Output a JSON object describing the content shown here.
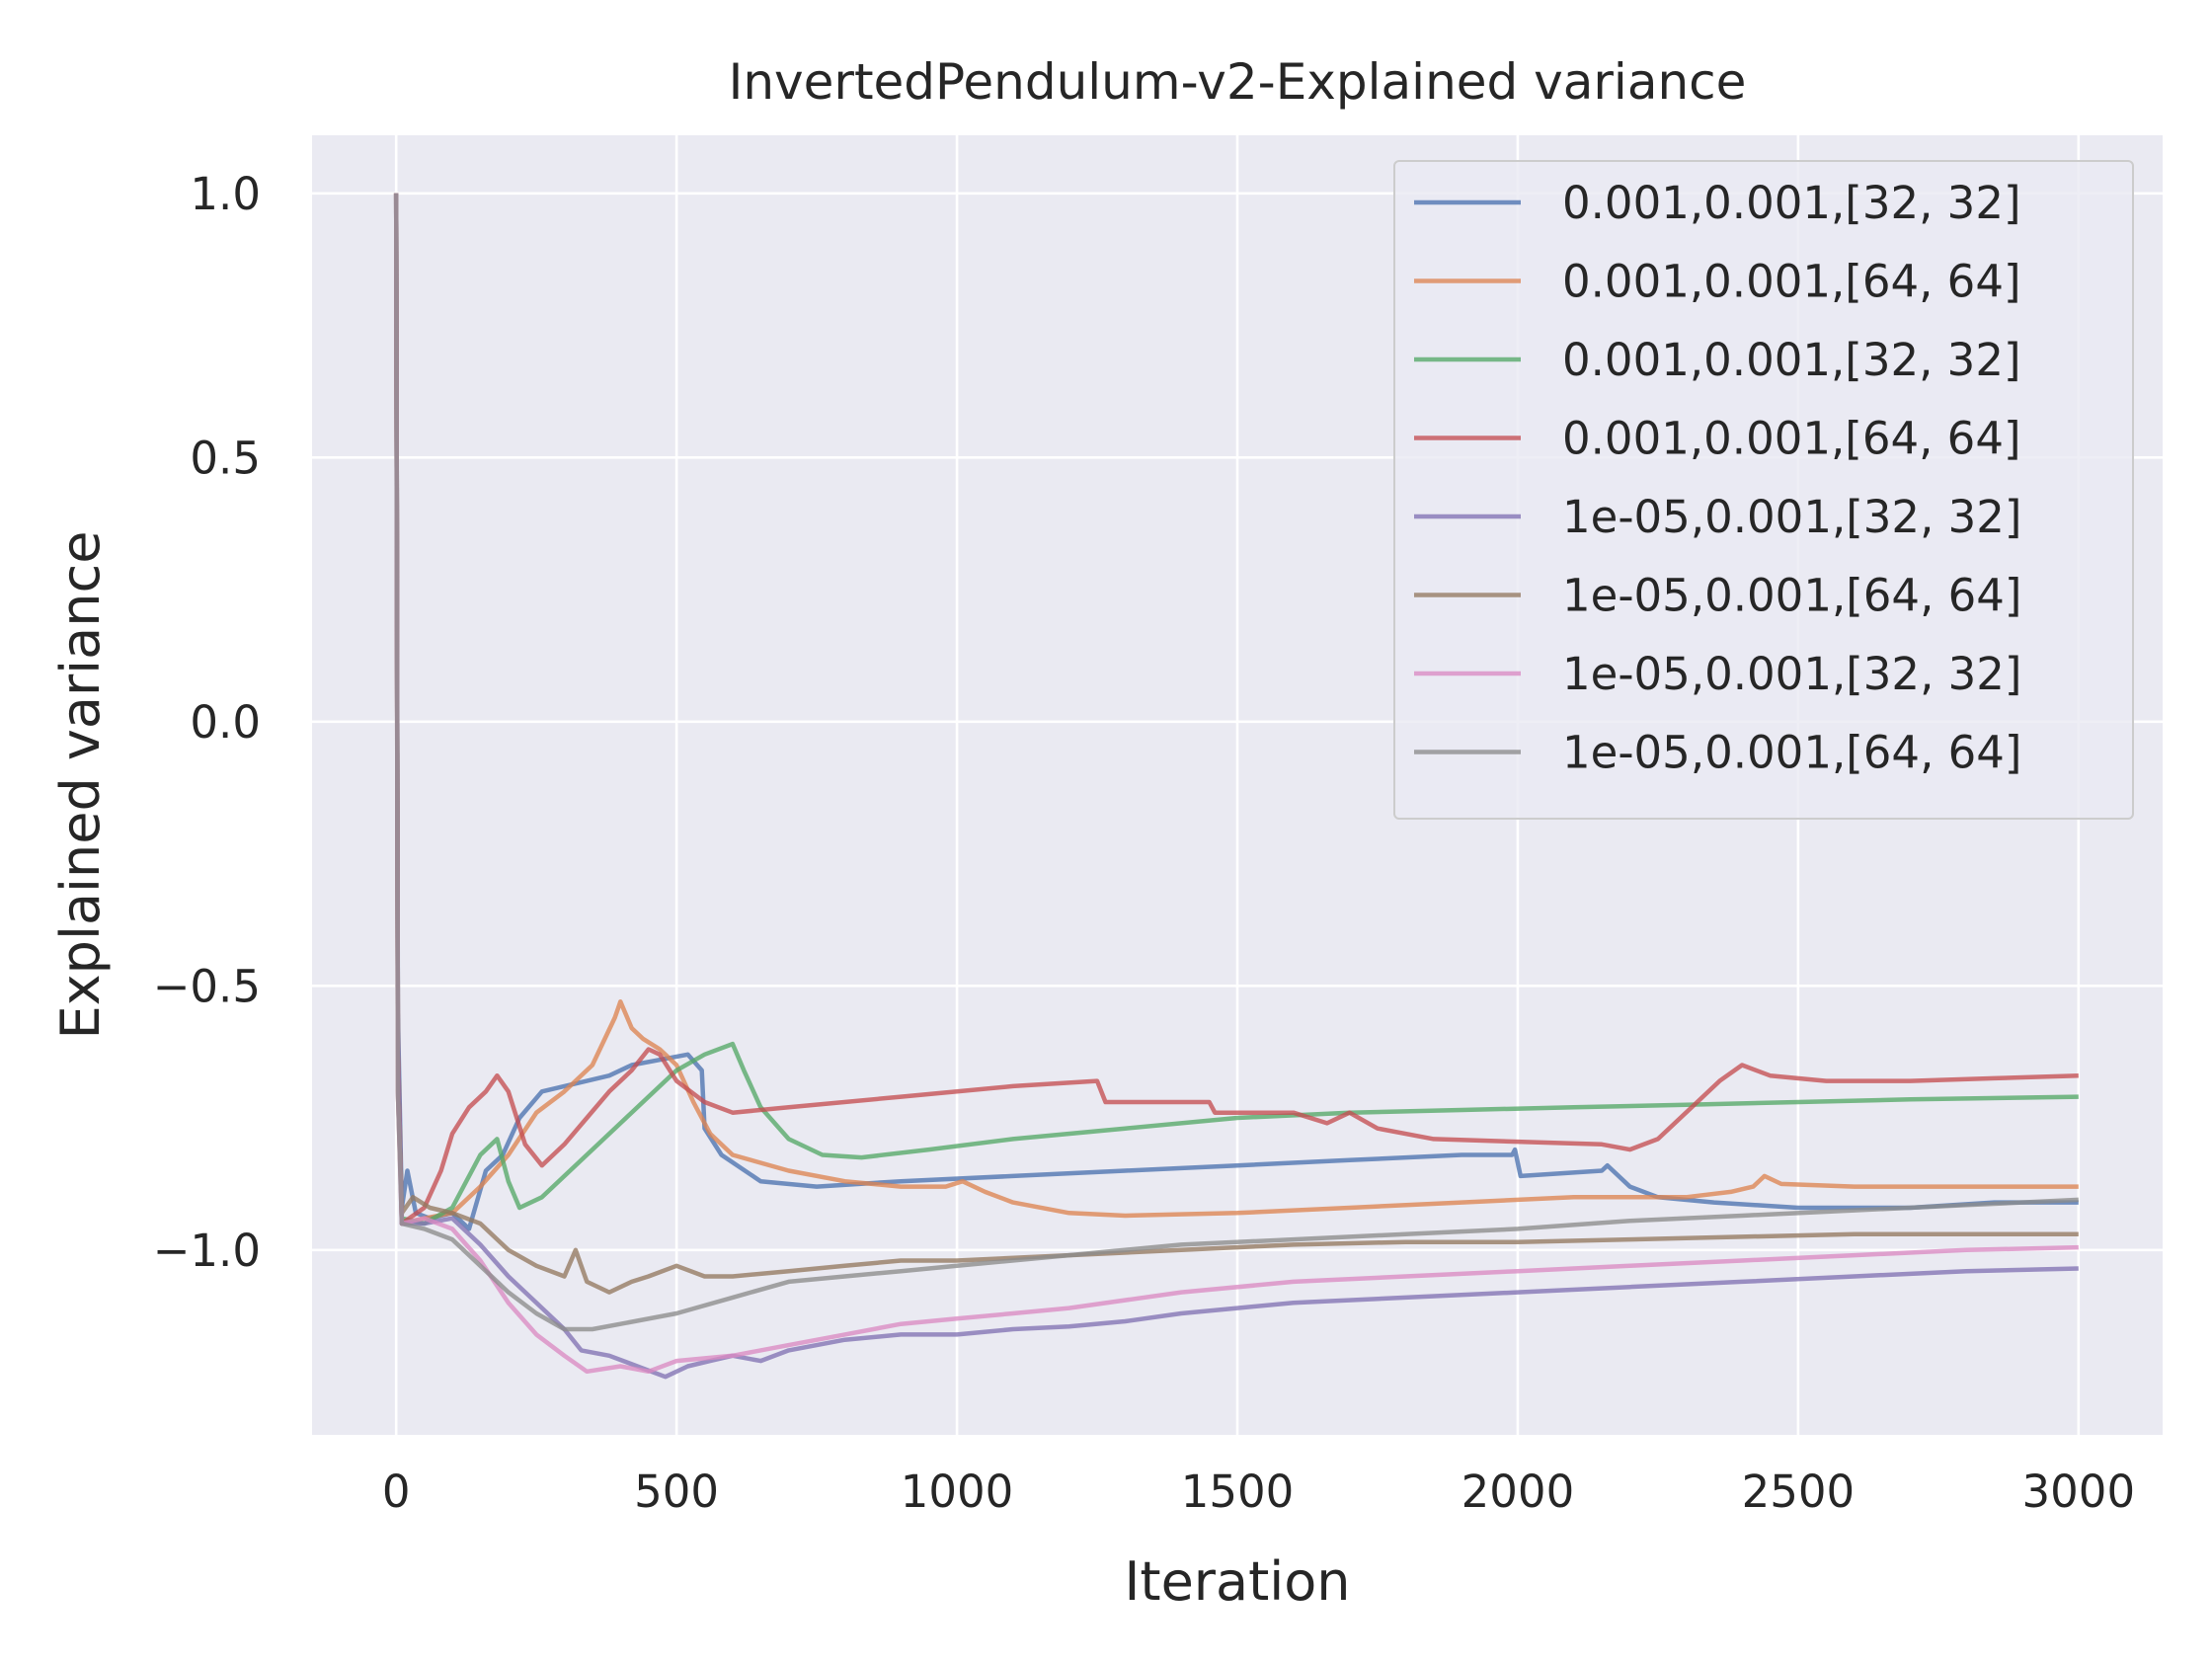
{
  "chart_data": {
    "type": "line",
    "title": "InvertedPendulum-v2-Explained variance",
    "xlabel": "Iteration",
    "ylabel": "Explained variance",
    "xlim": [
      -150,
      3150
    ],
    "ylim": [
      -1.35,
      1.11
    ],
    "x_ticks": [
      0,
      500,
      1000,
      1500,
      2000,
      2500,
      3000
    ],
    "x_tick_labels": [
      "0",
      "500",
      "1000",
      "1500",
      "2000",
      "2500",
      "3000"
    ],
    "y_ticks": [
      1.0,
      0.5,
      0.0,
      -0.5,
      -1.0
    ],
    "y_tick_labels": [
      "1.0",
      "0.5",
      "0.0",
      "−0.5",
      "−1.0"
    ],
    "grid": true,
    "legend_position": "top-right",
    "background": "#eaeaf2",
    "series": [
      {
        "name": "0.001,0.001,[32, 32]",
        "color": "#4c72b0",
        "points": [
          [
            0,
            1.0
          ],
          [
            3,
            -0.55
          ],
          [
            10,
            -0.92
          ],
          [
            20,
            -0.85
          ],
          [
            35,
            -0.93
          ],
          [
            60,
            -0.94
          ],
          [
            100,
            -0.93
          ],
          [
            130,
            -0.96
          ],
          [
            160,
            -0.85
          ],
          [
            190,
            -0.82
          ],
          [
            220,
            -0.75
          ],
          [
            260,
            -0.7
          ],
          [
            300,
            -0.69
          ],
          [
            340,
            -0.68
          ],
          [
            380,
            -0.67
          ],
          [
            420,
            -0.65
          ],
          [
            470,
            -0.64
          ],
          [
            520,
            -0.63
          ],
          [
            545,
            -0.66
          ],
          [
            550,
            -0.77
          ],
          [
            580,
            -0.82
          ],
          [
            650,
            -0.87
          ],
          [
            750,
            -0.88
          ],
          [
            900,
            -0.87
          ],
          [
            1100,
            -0.86
          ],
          [
            1300,
            -0.85
          ],
          [
            1500,
            -0.84
          ],
          [
            1700,
            -0.83
          ],
          [
            1900,
            -0.82
          ],
          [
            1990,
            -0.82
          ],
          [
            1995,
            -0.81
          ],
          [
            2005,
            -0.86
          ],
          [
            2150,
            -0.85
          ],
          [
            2160,
            -0.84
          ],
          [
            2200,
            -0.88
          ],
          [
            2250,
            -0.9
          ],
          [
            2350,
            -0.91
          ],
          [
            2500,
            -0.92
          ],
          [
            2700,
            -0.92
          ],
          [
            2850,
            -0.91
          ],
          [
            3000,
            -0.91
          ]
        ]
      },
      {
        "name": "0.001,0.001,[64, 64]",
        "color": "#dd8452",
        "points": [
          [
            0,
            1.0
          ],
          [
            3,
            -0.6
          ],
          [
            10,
            -0.95
          ],
          [
            50,
            -0.94
          ],
          [
            100,
            -0.93
          ],
          [
            150,
            -0.88
          ],
          [
            200,
            -0.82
          ],
          [
            250,
            -0.74
          ],
          [
            300,
            -0.7
          ],
          [
            350,
            -0.65
          ],
          [
            390,
            -0.56
          ],
          [
            400,
            -0.53
          ],
          [
            420,
            -0.58
          ],
          [
            440,
            -0.6
          ],
          [
            470,
            -0.62
          ],
          [
            500,
            -0.65
          ],
          [
            530,
            -0.72
          ],
          [
            560,
            -0.78
          ],
          [
            600,
            -0.82
          ],
          [
            700,
            -0.85
          ],
          [
            800,
            -0.87
          ],
          [
            900,
            -0.88
          ],
          [
            980,
            -0.88
          ],
          [
            1010,
            -0.87
          ],
          [
            1050,
            -0.89
          ],
          [
            1100,
            -0.91
          ],
          [
            1200,
            -0.93
          ],
          [
            1300,
            -0.935
          ],
          [
            1500,
            -0.93
          ],
          [
            1700,
            -0.92
          ],
          [
            1900,
            -0.91
          ],
          [
            2100,
            -0.9
          ],
          [
            2300,
            -0.9
          ],
          [
            2380,
            -0.89
          ],
          [
            2420,
            -0.88
          ],
          [
            2440,
            -0.86
          ],
          [
            2470,
            -0.875
          ],
          [
            2600,
            -0.88
          ],
          [
            2800,
            -0.88
          ],
          [
            3000,
            -0.88
          ]
        ]
      },
      {
        "name": "0.001,0.001,[32, 32]",
        "color": "#55a868",
        "points": [
          [
            0,
            1.0
          ],
          [
            3,
            -0.6
          ],
          [
            10,
            -0.94
          ],
          [
            50,
            -0.95
          ],
          [
            100,
            -0.92
          ],
          [
            150,
            -0.82
          ],
          [
            180,
            -0.79
          ],
          [
            200,
            -0.87
          ],
          [
            220,
            -0.92
          ],
          [
            260,
            -0.9
          ],
          [
            300,
            -0.86
          ],
          [
            350,
            -0.81
          ],
          [
            400,
            -0.76
          ],
          [
            450,
            -0.71
          ],
          [
            500,
            -0.66
          ],
          [
            550,
            -0.63
          ],
          [
            600,
            -0.61
          ],
          [
            620,
            -0.66
          ],
          [
            650,
            -0.73
          ],
          [
            700,
            -0.79
          ],
          [
            760,
            -0.82
          ],
          [
            830,
            -0.825
          ],
          [
            950,
            -0.81
          ],
          [
            1100,
            -0.79
          ],
          [
            1300,
            -0.77
          ],
          [
            1500,
            -0.75
          ],
          [
            1700,
            -0.74
          ],
          [
            1900,
            -0.735
          ],
          [
            2100,
            -0.73
          ],
          [
            2300,
            -0.725
          ],
          [
            2500,
            -0.72
          ],
          [
            2700,
            -0.715
          ],
          [
            3000,
            -0.71
          ]
        ]
      },
      {
        "name": "0.001,0.001,[64, 64]",
        "color": "#c44e52",
        "points": [
          [
            0,
            1.0
          ],
          [
            3,
            -0.6
          ],
          [
            10,
            -0.95
          ],
          [
            50,
            -0.92
          ],
          [
            80,
            -0.85
          ],
          [
            100,
            -0.78
          ],
          [
            130,
            -0.73
          ],
          [
            160,
            -0.7
          ],
          [
            180,
            -0.67
          ],
          [
            200,
            -0.7
          ],
          [
            230,
            -0.8
          ],
          [
            260,
            -0.84
          ],
          [
            300,
            -0.8
          ],
          [
            340,
            -0.75
          ],
          [
            380,
            -0.7
          ],
          [
            420,
            -0.66
          ],
          [
            450,
            -0.62
          ],
          [
            470,
            -0.63
          ],
          [
            500,
            -0.68
          ],
          [
            550,
            -0.72
          ],
          [
            600,
            -0.74
          ],
          [
            700,
            -0.73
          ],
          [
            900,
            -0.71
          ],
          [
            1100,
            -0.69
          ],
          [
            1250,
            -0.68
          ],
          [
            1265,
            -0.72
          ],
          [
            1450,
            -0.72
          ],
          [
            1460,
            -0.74
          ],
          [
            1600,
            -0.74
          ],
          [
            1660,
            -0.76
          ],
          [
            1700,
            -0.74
          ],
          [
            1750,
            -0.77
          ],
          [
            1850,
            -0.79
          ],
          [
            2000,
            -0.795
          ],
          [
            2150,
            -0.8
          ],
          [
            2200,
            -0.81
          ],
          [
            2250,
            -0.79
          ],
          [
            2320,
            -0.72
          ],
          [
            2360,
            -0.68
          ],
          [
            2400,
            -0.65
          ],
          [
            2450,
            -0.67
          ],
          [
            2550,
            -0.68
          ],
          [
            2700,
            -0.68
          ],
          [
            2850,
            -0.675
          ],
          [
            3000,
            -0.67
          ]
        ]
      },
      {
        "name": "1e-05,0.001,[32, 32]",
        "color": "#8172b3",
        "points": [
          [
            0,
            1.0
          ],
          [
            3,
            -0.6
          ],
          [
            10,
            -0.95
          ],
          [
            50,
            -0.95
          ],
          [
            100,
            -0.94
          ],
          [
            150,
            -0.99
          ],
          [
            200,
            -1.05
          ],
          [
            250,
            -1.1
          ],
          [
            300,
            -1.15
          ],
          [
            330,
            -1.19
          ],
          [
            380,
            -1.2
          ],
          [
            430,
            -1.22
          ],
          [
            480,
            -1.24
          ],
          [
            520,
            -1.22
          ],
          [
            560,
            -1.21
          ],
          [
            600,
            -1.2
          ],
          [
            650,
            -1.21
          ],
          [
            700,
            -1.19
          ],
          [
            800,
            -1.17
          ],
          [
            900,
            -1.16
          ],
          [
            1000,
            -1.16
          ],
          [
            1100,
            -1.15
          ],
          [
            1200,
            -1.145
          ],
          [
            1300,
            -1.135
          ],
          [
            1400,
            -1.12
          ],
          [
            1500,
            -1.11
          ],
          [
            1600,
            -1.1
          ],
          [
            1800,
            -1.09
          ],
          [
            2000,
            -1.08
          ],
          [
            2200,
            -1.07
          ],
          [
            2400,
            -1.06
          ],
          [
            2600,
            -1.05
          ],
          [
            2800,
            -1.04
          ],
          [
            3000,
            -1.035
          ]
        ]
      },
      {
        "name": "1e-05,0.001,[64, 64]",
        "color": "#937860",
        "points": [
          [
            0,
            1.0
          ],
          [
            3,
            -0.7
          ],
          [
            10,
            -0.93
          ],
          [
            30,
            -0.9
          ],
          [
            60,
            -0.92
          ],
          [
            100,
            -0.93
          ],
          [
            150,
            -0.95
          ],
          [
            200,
            -1.0
          ],
          [
            250,
            -1.03
          ],
          [
            300,
            -1.05
          ],
          [
            320,
            -1.0
          ],
          [
            340,
            -1.06
          ],
          [
            380,
            -1.08
          ],
          [
            420,
            -1.06
          ],
          [
            450,
            -1.05
          ],
          [
            500,
            -1.03
          ],
          [
            550,
            -1.05
          ],
          [
            600,
            -1.05
          ],
          [
            700,
            -1.04
          ],
          [
            800,
            -1.03
          ],
          [
            900,
            -1.02
          ],
          [
            1000,
            -1.02
          ],
          [
            1200,
            -1.01
          ],
          [
            1400,
            -1.0
          ],
          [
            1600,
            -0.99
          ],
          [
            1800,
            -0.985
          ],
          [
            2000,
            -0.985
          ],
          [
            2200,
            -0.98
          ],
          [
            2400,
            -0.975
          ],
          [
            2600,
            -0.97
          ],
          [
            2800,
            -0.97
          ],
          [
            3000,
            -0.97
          ]
        ]
      },
      {
        "name": "1e-05,0.001,[32, 32]",
        "color": "#da8bc3",
        "points": [
          [
            0,
            1.0
          ],
          [
            3,
            -0.7
          ],
          [
            10,
            -0.95
          ],
          [
            50,
            -0.94
          ],
          [
            100,
            -0.96
          ],
          [
            150,
            -1.02
          ],
          [
            200,
            -1.1
          ],
          [
            250,
            -1.16
          ],
          [
            300,
            -1.2
          ],
          [
            340,
            -1.23
          ],
          [
            400,
            -1.22
          ],
          [
            450,
            -1.23
          ],
          [
            500,
            -1.21
          ],
          [
            600,
            -1.2
          ],
          [
            700,
            -1.18
          ],
          [
            800,
            -1.16
          ],
          [
            900,
            -1.14
          ],
          [
            1000,
            -1.13
          ],
          [
            1100,
            -1.12
          ],
          [
            1200,
            -1.11
          ],
          [
            1400,
            -1.08
          ],
          [
            1600,
            -1.06
          ],
          [
            1800,
            -1.05
          ],
          [
            2000,
            -1.04
          ],
          [
            2200,
            -1.03
          ],
          [
            2400,
            -1.02
          ],
          [
            2600,
            -1.01
          ],
          [
            2800,
            -1.0
          ],
          [
            3000,
            -0.995
          ]
        ]
      },
      {
        "name": "1e-05,0.001,[64, 64]",
        "color": "#8c8c8c",
        "points": [
          [
            0,
            1.0
          ],
          [
            3,
            -0.7
          ],
          [
            10,
            -0.95
          ],
          [
            50,
            -0.96
          ],
          [
            100,
            -0.98
          ],
          [
            150,
            -1.03
          ],
          [
            200,
            -1.08
          ],
          [
            250,
            -1.12
          ],
          [
            300,
            -1.15
          ],
          [
            350,
            -1.15
          ],
          [
            400,
            -1.14
          ],
          [
            500,
            -1.12
          ],
          [
            600,
            -1.09
          ],
          [
            700,
            -1.06
          ],
          [
            800,
            -1.05
          ],
          [
            900,
            -1.04
          ],
          [
            1000,
            -1.03
          ],
          [
            1200,
            -1.01
          ],
          [
            1400,
            -0.99
          ],
          [
            1600,
            -0.98
          ],
          [
            1800,
            -0.97
          ],
          [
            2000,
            -0.96
          ],
          [
            2200,
            -0.945
          ],
          [
            2400,
            -0.935
          ],
          [
            2600,
            -0.925
          ],
          [
            2800,
            -0.915
          ],
          [
            3000,
            -0.905
          ]
        ]
      }
    ]
  }
}
